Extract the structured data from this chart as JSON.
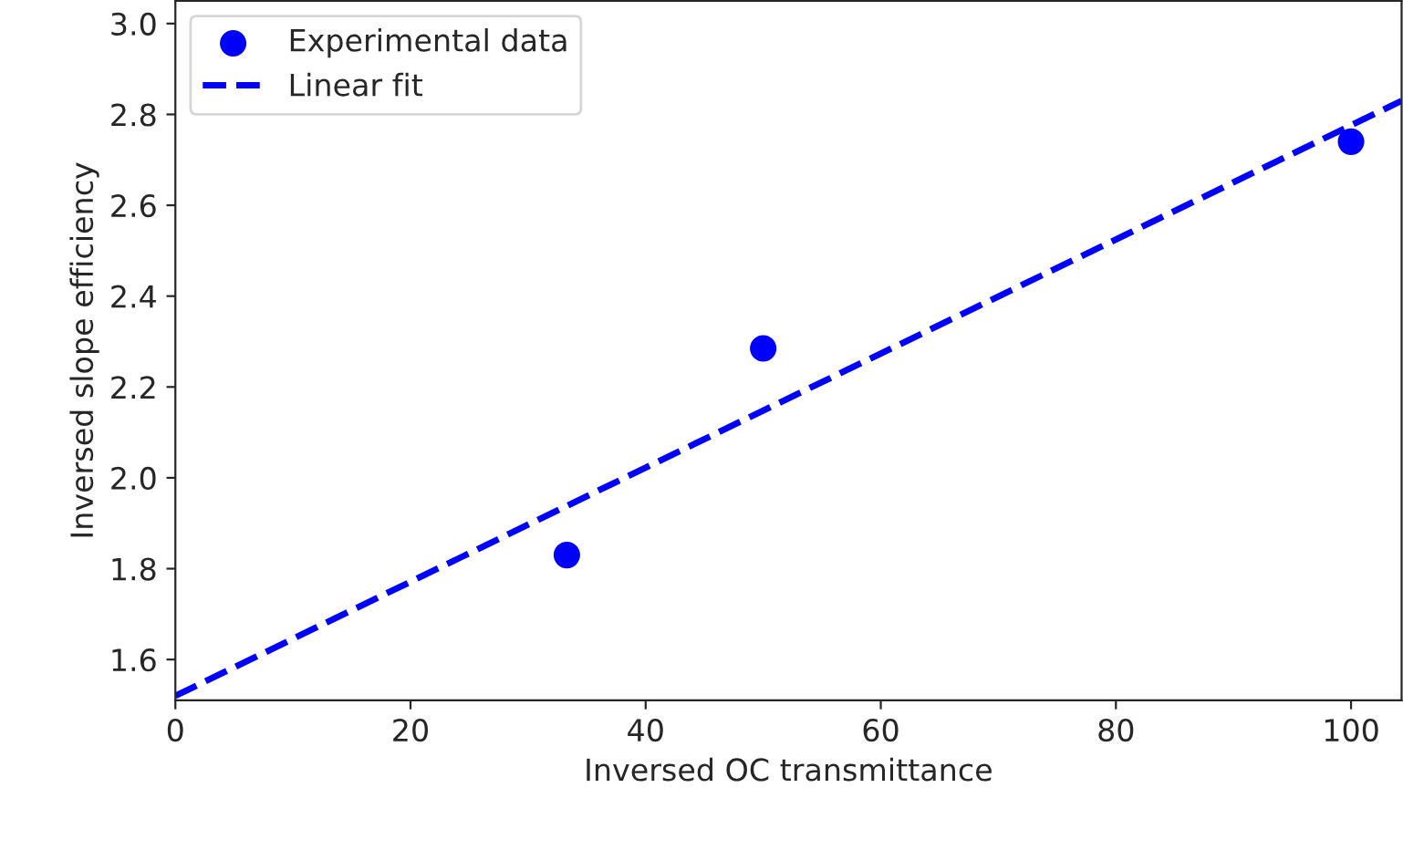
{
  "chart_data": {
    "type": "scatter",
    "xlabel": "Inversed OC transmittance",
    "ylabel": "Inversed slope efficiency",
    "xlim": [
      0,
      104.3
    ],
    "ylim": [
      1.51,
      3.05
    ],
    "xticks": [
      0,
      20,
      40,
      60,
      80,
      100
    ],
    "yticks": [
      1.6,
      1.8,
      {
        "value": 2.0,
        "label": "2.0"
      },
      2.2,
      2.4,
      2.6,
      2.8,
      {
        "value": 3.0,
        "label": "3.0"
      }
    ],
    "series": [
      {
        "name": "Experimental data",
        "color": "#0000ff",
        "marker": "circle",
        "x": [
          33.3,
          50,
          100
        ],
        "values": [
          1.83,
          2.285,
          2.74
        ]
      },
      {
        "name": "Linear fit",
        "type": "line",
        "color": "#0000ff",
        "line_style": "dashed",
        "x": [
          0,
          104.3
        ],
        "values": [
          1.52,
          2.83
        ]
      }
    ],
    "legend": "top left",
    "grid": false
  }
}
